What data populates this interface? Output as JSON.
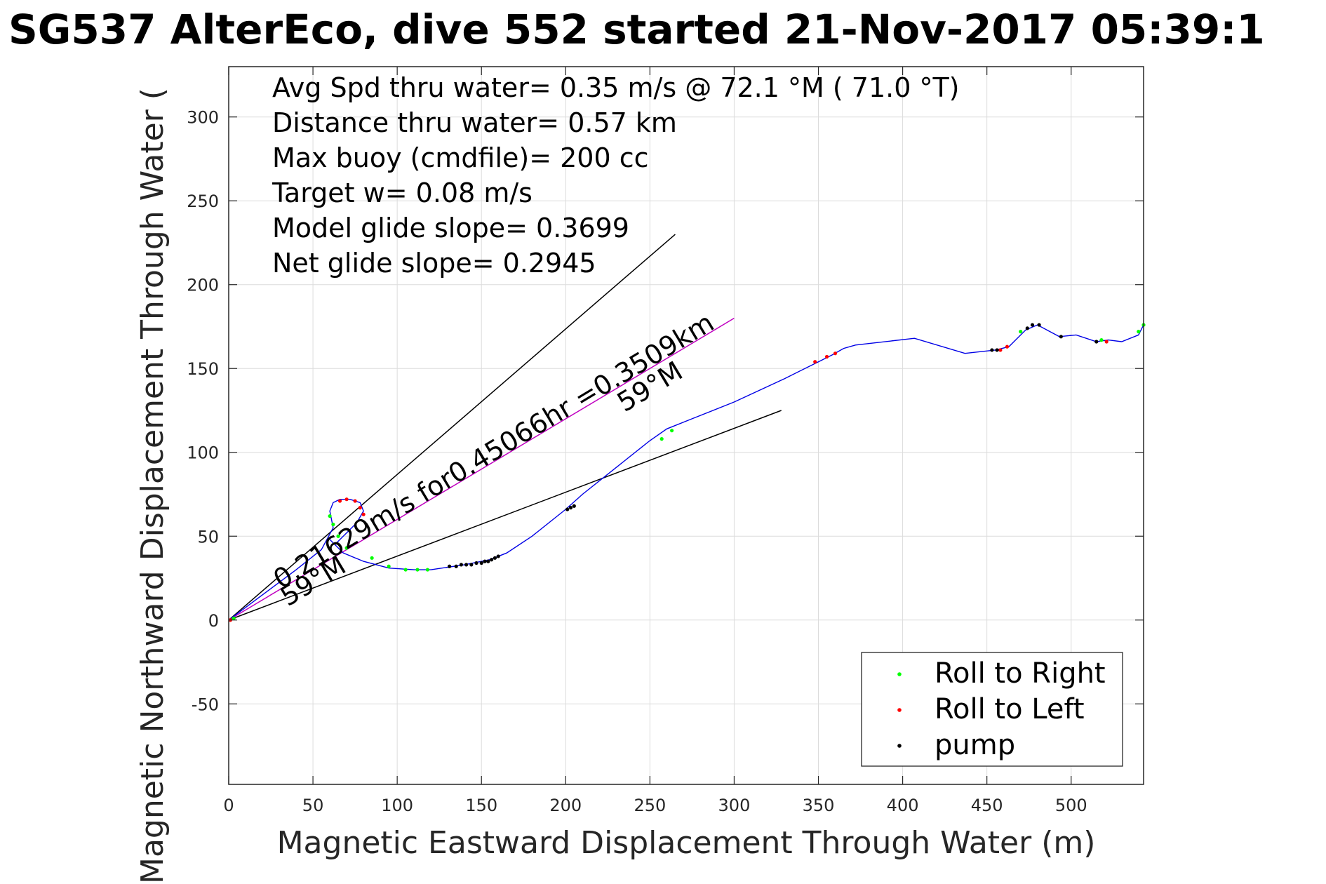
{
  "chart_data": {
    "type": "line",
    "title": "SG537 AlterEco, dive 552 started 21-Nov-2017 05:39:1",
    "xlabel": "Magnetic Eastward Displacement Through Water (m)",
    "ylabel": "Magnetic Northward Displacement Through Water (",
    "xlim": [
      0,
      543
    ],
    "ylim": [
      -98,
      330
    ],
    "xticks": [
      0,
      50,
      100,
      150,
      200,
      250,
      300,
      350,
      400,
      450,
      500
    ],
    "yticks": [
      -50,
      0,
      50,
      100,
      150,
      200,
      250,
      300
    ],
    "grid": true,
    "legend_position": "bottom-right",
    "info_lines": [
      "Avg Spd thru water=  0.35 m/s @  72.1 °M ( 71.0 °T)",
      "Distance thru water=  0.57 km",
      "Max buoy (cmdfile)= 200 cc",
      "Target w= 0.08 m/s",
      "Model glide slope= 0.3699",
      "Net glide slope= 0.2945"
    ],
    "annotations": {
      "current_label": "0.21629m/s for0.45066hr =0.3509km",
      "heading_label_1": "59°M",
      "heading_label_2": "59°M"
    },
    "reference_lines": [
      {
        "x": [
          0,
          265
        ],
        "y": [
          0,
          230
        ],
        "color": "#000000"
      },
      {
        "x": [
          0,
          328
        ],
        "y": [
          0,
          125
        ],
        "color": "#000000"
      },
      {
        "x": [
          0,
          300
        ],
        "y": [
          0,
          180
        ],
        "color": "#c000c0"
      }
    ],
    "track": {
      "name": "track",
      "color": "#0000e6",
      "x": [
        0,
        20,
        40,
        55,
        62,
        60,
        62,
        66,
        72,
        78,
        80,
        76,
        68,
        63,
        60,
        68,
        80,
        95,
        110,
        120,
        140,
        155,
        165,
        180,
        200,
        210,
        230,
        250,
        260,
        275,
        300,
        330,
        350,
        358,
        365,
        372,
        407,
        437,
        455,
        463,
        473,
        480,
        493,
        503,
        515,
        522,
        530,
        540,
        543
      ],
      "y": [
        0,
        15,
        30,
        42,
        55,
        65,
        70,
        72,
        72,
        70,
        65,
        58,
        50,
        45,
        48,
        40,
        35,
        31,
        30,
        30,
        33,
        36,
        40,
        50,
        66,
        75,
        91,
        107,
        114,
        120,
        130,
        144,
        154,
        158,
        162,
        164,
        168,
        159,
        161,
        163,
        173,
        176,
        169,
        170,
        166,
        167,
        166,
        170,
        176
      ]
    },
    "series": [
      {
        "name": "Roll to Right",
        "color": "#00ff00",
        "x": [
          3,
          62,
          60,
          65,
          70,
          85,
          95,
          105,
          112,
          118,
          257,
          263,
          470,
          518,
          540,
          543
        ],
        "y": [
          1,
          57,
          62,
          50,
          43,
          37,
          32,
          30,
          30,
          30,
          108,
          113,
          172,
          167,
          172,
          176
        ]
      },
      {
        "name": "Roll to Left",
        "color": "#ff0000",
        "x": [
          1,
          66,
          70,
          75,
          78,
          80,
          348,
          355,
          360,
          458,
          462,
          521
        ],
        "y": [
          0,
          71,
          72,
          71,
          67,
          63,
          154,
          157,
          159,
          161,
          163,
          166
        ]
      },
      {
        "name": "pump",
        "color": "#000000",
        "x": [
          131,
          135,
          138,
          141,
          144,
          147,
          150,
          152,
          154,
          156,
          158,
          160,
          201,
          203,
          205,
          453,
          456,
          474,
          477,
          481,
          494,
          515
        ],
        "y": [
          32,
          32,
          33,
          33,
          33,
          34,
          34,
          35,
          35,
          36,
          37,
          38,
          66,
          67,
          68,
          161,
          161,
          174,
          176,
          176,
          169,
          166
        ]
      }
    ]
  }
}
